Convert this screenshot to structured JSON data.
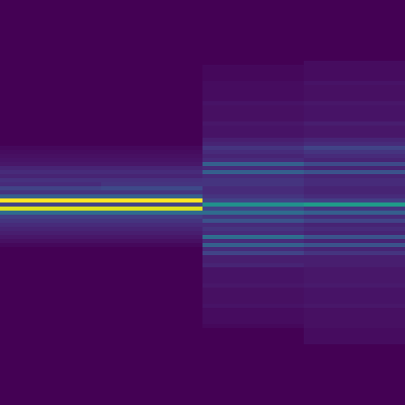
{
  "chart_data": {
    "type": "heatmap",
    "color": "Viridis",
    "tick_labels": false,
    "grid": false,
    "zlim": [
      0,
      1
    ],
    "cells": [
      [
        0,
        0,
        0,
        0
      ],
      [
        0,
        0,
        0,
        0
      ],
      [
        0,
        0,
        0,
        0
      ],
      [
        0,
        0,
        0,
        0
      ],
      [
        0,
        0,
        0,
        0
      ],
      [
        0,
        0,
        0,
        0
      ],
      [
        0,
        0,
        0,
        0
      ],
      [
        0,
        0,
        0,
        0
      ],
      [
        0,
        0,
        0,
        0
      ],
      [
        0,
        0,
        0,
        0
      ],
      [
        0,
        0,
        0,
        0
      ],
      [
        0,
        0,
        0,
        0
      ],
      [
        0,
        0,
        0,
        0
      ],
      [
        0,
        0,
        0,
        0
      ],
      [
        0,
        0,
        0,
        0
      ],
      [
        0,
        0,
        0,
        0.03
      ],
      [
        0,
        0,
        0.02,
        0.03
      ],
      [
        0,
        0,
        0.02,
        0.03
      ],
      [
        0,
        0,
        0.02,
        0.03
      ],
      [
        0,
        0,
        0.02,
        0.03
      ],
      [
        0,
        0,
        0.03,
        0.05
      ],
      [
        0,
        0,
        0.03,
        0.04
      ],
      [
        0,
        0,
        0.03,
        0.04
      ],
      [
        0,
        0,
        0.03,
        0.04
      ],
      [
        0,
        0,
        0.03,
        0.04
      ],
      [
        0,
        0,
        0.05,
        0.06
      ],
      [
        0,
        0,
        0.04,
        0.05
      ],
      [
        0,
        0,
        0.04,
        0.05
      ],
      [
        0,
        0,
        0.04,
        0.05
      ],
      [
        0,
        0,
        0.04,
        0.05
      ],
      [
        0,
        0,
        0.06,
        0.08
      ],
      [
        0,
        0,
        0.05,
        0.06
      ],
      [
        0,
        0,
        0.05,
        0.06
      ],
      [
        0,
        0,
        0.05,
        0.06
      ],
      [
        0,
        0,
        0.08,
        0.1
      ],
      [
        0,
        0,
        0.1,
        0.12
      ],
      [
        0.02,
        0.02,
        0.15,
        0.2
      ],
      [
        0.03,
        0.03,
        0.12,
        0.15
      ],
      [
        0.04,
        0.04,
        0.1,
        0.12
      ],
      [
        0.05,
        0.05,
        0.12,
        0.1
      ],
      [
        0.06,
        0.06,
        0.3,
        0.22
      ],
      [
        0.1,
        0.1,
        0.12,
        0.1
      ],
      [
        0.12,
        0.12,
        0.3,
        0.25
      ],
      [
        0.1,
        0.1,
        0.12,
        0.1
      ],
      [
        0.14,
        0.14,
        0.15,
        0.12
      ],
      [
        0.12,
        0.15,
        0.15,
        0.12
      ],
      [
        0.2,
        0.22,
        0.12,
        0.1
      ],
      [
        0.15,
        0.15,
        0.12,
        0.1
      ],
      [
        0.3,
        0.3,
        0.15,
        0.12
      ],
      [
        1.0,
        1.0,
        0.2,
        0.18
      ],
      [
        0.2,
        0.2,
        0.5,
        0.55
      ],
      [
        0.95,
        0.95,
        0.2,
        0.15
      ],
      [
        0.35,
        0.35,
        0.35,
        0.3
      ],
      [
        0.18,
        0.18,
        0.15,
        0.12
      ],
      [
        0.15,
        0.15,
        0.25,
        0.2
      ],
      [
        0.12,
        0.12,
        0.12,
        0.1
      ],
      [
        0.1,
        0.1,
        0.15,
        0.12
      ],
      [
        0.08,
        0.08,
        0.12,
        0.1
      ],
      [
        0.06,
        0.06,
        0.35,
        0.25
      ],
      [
        0.04,
        0.04,
        0.12,
        0.1
      ],
      [
        0.02,
        0.02,
        0.3,
        0.25
      ],
      [
        0,
        0,
        0.12,
        0.1
      ],
      [
        0,
        0,
        0.2,
        0.15
      ],
      [
        0,
        0,
        0.08,
        0.08
      ],
      [
        0,
        0,
        0.08,
        0.08
      ],
      [
        0,
        0,
        0.1,
        0.08
      ],
      [
        0,
        0,
        0.05,
        0.06
      ],
      [
        0,
        0,
        0.05,
        0.06
      ],
      [
        0,
        0,
        0.05,
        0.06
      ],
      [
        0,
        0,
        0.05,
        0.06
      ],
      [
        0,
        0,
        0.06,
        0.07
      ],
      [
        0,
        0,
        0.04,
        0.05
      ],
      [
        0,
        0,
        0.04,
        0.05
      ],
      [
        0,
        0,
        0.04,
        0.05
      ],
      [
        0,
        0,
        0.04,
        0.05
      ],
      [
        0,
        0,
        0.05,
        0.06
      ],
      [
        0,
        0,
        0.03,
        0.04
      ],
      [
        0,
        0,
        0.03,
        0.04
      ],
      [
        0,
        0,
        0.03,
        0.04
      ],
      [
        0,
        0,
        0.03,
        0.04
      ],
      [
        0,
        0,
        0.02,
        0.04
      ],
      [
        0,
        0,
        0,
        0.03
      ],
      [
        0,
        0,
        0,
        0.03
      ],
      [
        0,
        0,
        0,
        0.03
      ],
      [
        0,
        0,
        0,
        0.03
      ],
      [
        0,
        0,
        0,
        0
      ],
      [
        0,
        0,
        0,
        0
      ],
      [
        0,
        0,
        0,
        0
      ],
      [
        0,
        0,
        0,
        0
      ],
      [
        0,
        0,
        0,
        0
      ],
      [
        0,
        0,
        0,
        0
      ],
      [
        0,
        0,
        0,
        0
      ],
      [
        0,
        0,
        0,
        0
      ],
      [
        0,
        0,
        0,
        0
      ],
      [
        0,
        0,
        0,
        0
      ],
      [
        0,
        0,
        0,
        0
      ],
      [
        0,
        0,
        0,
        0
      ],
      [
        0,
        0,
        0,
        0
      ],
      [
        0,
        0,
        0,
        0
      ],
      [
        0,
        0,
        0,
        0
      ]
    ]
  }
}
